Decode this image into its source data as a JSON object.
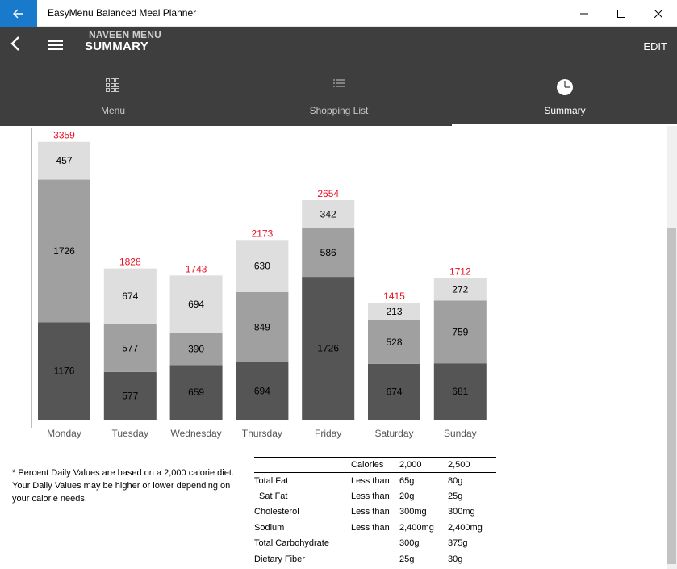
{
  "window": {
    "title": "EasyMenu Balanced Meal Planner",
    "back_icon": "arrow-left-icon",
    "minimize_glyph": "—",
    "maximize_glyph": "☐",
    "close_glyph": "✕"
  },
  "header": {
    "menu_name": "NAVEEN MENU",
    "title": "SUMMARY",
    "edit_label": "EDIT"
  },
  "tabs": [
    {
      "label": "Menu",
      "icon": "grid-icon",
      "active": false
    },
    {
      "label": "Shopping List",
      "icon": "list-icon",
      "active": false
    },
    {
      "label": "Summary",
      "icon": "pie-icon",
      "active": true
    }
  ],
  "colors": {
    "bar_bottom": "#555555",
    "bar_middle": "#a0a0a0",
    "bar_top": "#dedede",
    "total_label": "#e81123",
    "header_bg": "#3e3e3e",
    "accent": "#1979ca"
  },
  "chart_data": {
    "type": "bar",
    "stacked": true,
    "categories": [
      "Monday",
      "Tuesday",
      "Wednesday",
      "Thursday",
      "Friday",
      "Saturday",
      "Sunday"
    ],
    "series": [
      {
        "values": [
          1176,
          577,
          659,
          694,
          1726,
          674,
          681
        ]
      },
      {
        "values": [
          1726,
          577,
          390,
          849,
          586,
          528,
          759
        ]
      },
      {
        "values": [
          457,
          674,
          694,
          630,
          342,
          213,
          272
        ]
      }
    ],
    "totals": [
      3359,
      1828,
      1743,
      2173,
      2654,
      1415,
      1712
    ],
    "ylim": [
      0,
      3400
    ],
    "grid": false
  },
  "footnote": "* Percent Daily Values are based on a 2,000 calorie diet. Your Daily Values may be higher or lower depending on your calorie needs.",
  "dv_table": {
    "header": [
      "",
      "Calories",
      "2,000",
      "2,500"
    ],
    "rows": [
      [
        "Total Fat",
        "Less than",
        "65g",
        "80g"
      ],
      [
        "  Sat Fat",
        "Less than",
        "20g",
        "25g"
      ],
      [
        "Cholesterol",
        "Less than",
        "300mg",
        "300mg"
      ],
      [
        "Sodium",
        "Less than",
        "2,400mg",
        "2,400mg"
      ],
      [
        "Total Carbohydrate",
        "",
        "300g",
        "375g"
      ],
      [
        "Dietary Fiber",
        "",
        "25g",
        "30g"
      ]
    ]
  }
}
